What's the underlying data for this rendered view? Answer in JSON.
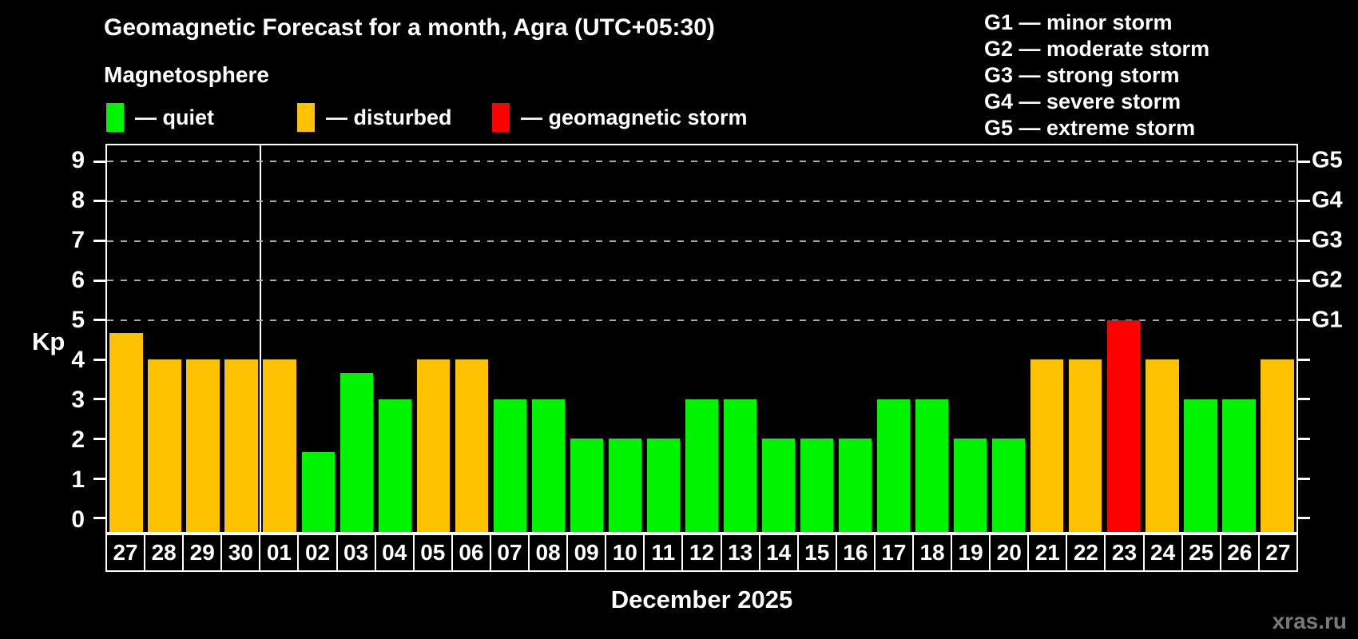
{
  "title": "Geomagnetic Forecast for a month, Agra (UTC+05:30)",
  "subtitle": "Magnetosphere",
  "watermark": "xras.ru",
  "colors": {
    "quiet": "#00f400",
    "disturbed": "#ffc200",
    "storm": "#ff0000",
    "grid": "#a9a9a9",
    "axis": "#ffffff",
    "watermark": "#7a7a7a",
    "background": "#000000"
  },
  "legend": {
    "quiet_label": "— quiet",
    "disturbed_label": "— disturbed",
    "storm_label": "— geomagnetic storm"
  },
  "g_scale": [
    {
      "axis_label": "G1",
      "legend_label": "G1 — minor storm",
      "kp_level": 5
    },
    {
      "axis_label": "G2",
      "legend_label": "G2 — moderate storm",
      "kp_level": 6
    },
    {
      "axis_label": "G3",
      "legend_label": "G3 — strong storm",
      "kp_level": 7
    },
    {
      "axis_label": "G4",
      "legend_label": "G4 — severe storm",
      "kp_level": 8
    },
    {
      "axis_label": "G5",
      "legend_label": "G5 — extreme storm",
      "kp_level": 9
    }
  ],
  "y_axis": {
    "label": "Kp",
    "ticks": [
      0,
      1,
      2,
      3,
      4,
      5,
      6,
      7,
      8,
      9
    ],
    "min": -0.35,
    "max": 9.41
  },
  "x_axis": {
    "label": "December 2025"
  },
  "chart_data": {
    "type": "bar",
    "title": "Geomagnetic Forecast for a month, Agra (UTC+05:30)",
    "xlabel": "December 2025",
    "ylabel": "Kp",
    "ylim": [
      0,
      9
    ],
    "grid": "dashed horizontal lines at Kp 5-9 (G1-G5 storm levels)",
    "legend_position": "top-left",
    "separator_after_index": 3,
    "categories": [
      "27",
      "28",
      "29",
      "30",
      "01",
      "02",
      "03",
      "04",
      "05",
      "06",
      "07",
      "08",
      "09",
      "10",
      "11",
      "12",
      "13",
      "14",
      "15",
      "16",
      "17",
      "18",
      "19",
      "20",
      "21",
      "22",
      "23",
      "24",
      "25",
      "26",
      "27"
    ],
    "values": [
      4.67,
      4,
      4,
      4,
      4,
      1.67,
      3.67,
      3,
      4,
      4,
      3,
      3,
      2,
      2,
      2,
      3,
      3,
      2,
      2,
      2,
      3,
      3,
      2,
      2,
      4,
      4,
      5,
      4,
      3,
      3,
      4
    ],
    "states": [
      "disturbed",
      "disturbed",
      "disturbed",
      "disturbed",
      "disturbed",
      "quiet",
      "quiet",
      "quiet",
      "disturbed",
      "disturbed",
      "quiet",
      "quiet",
      "quiet",
      "quiet",
      "quiet",
      "quiet",
      "quiet",
      "quiet",
      "quiet",
      "quiet",
      "quiet",
      "quiet",
      "quiet",
      "quiet",
      "disturbed",
      "disturbed",
      "storm",
      "disturbed",
      "quiet",
      "quiet",
      "disturbed"
    ]
  }
}
